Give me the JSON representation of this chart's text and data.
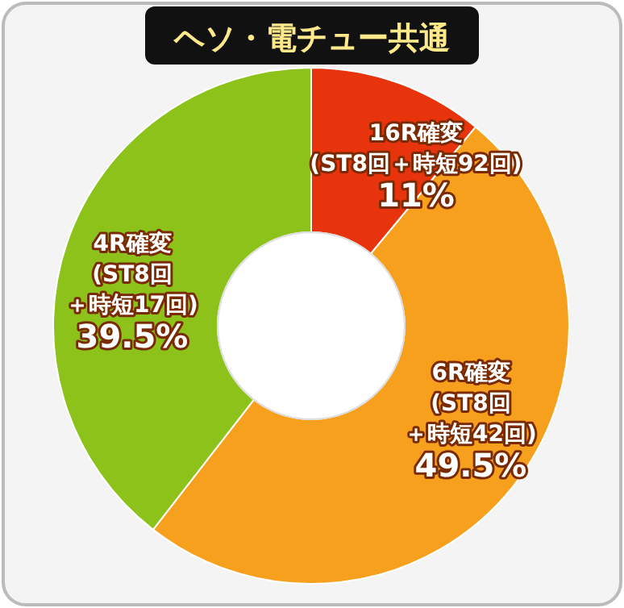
{
  "chart_data": {
    "type": "donut",
    "title": "ヘソ・電チュー共通",
    "categories": [
      "16R確変(ST8回＋時短92回)",
      "6R確変(ST8回＋時短42回)",
      "4R確変(ST8回＋時短17回)"
    ],
    "values": [
      11,
      49.5,
      39.5
    ],
    "colors": [
      "#e8340c",
      "#f7a01e",
      "#8cc21a"
    ],
    "value_labels": [
      "11%",
      "49.5%",
      "39.5%"
    ]
  }
}
